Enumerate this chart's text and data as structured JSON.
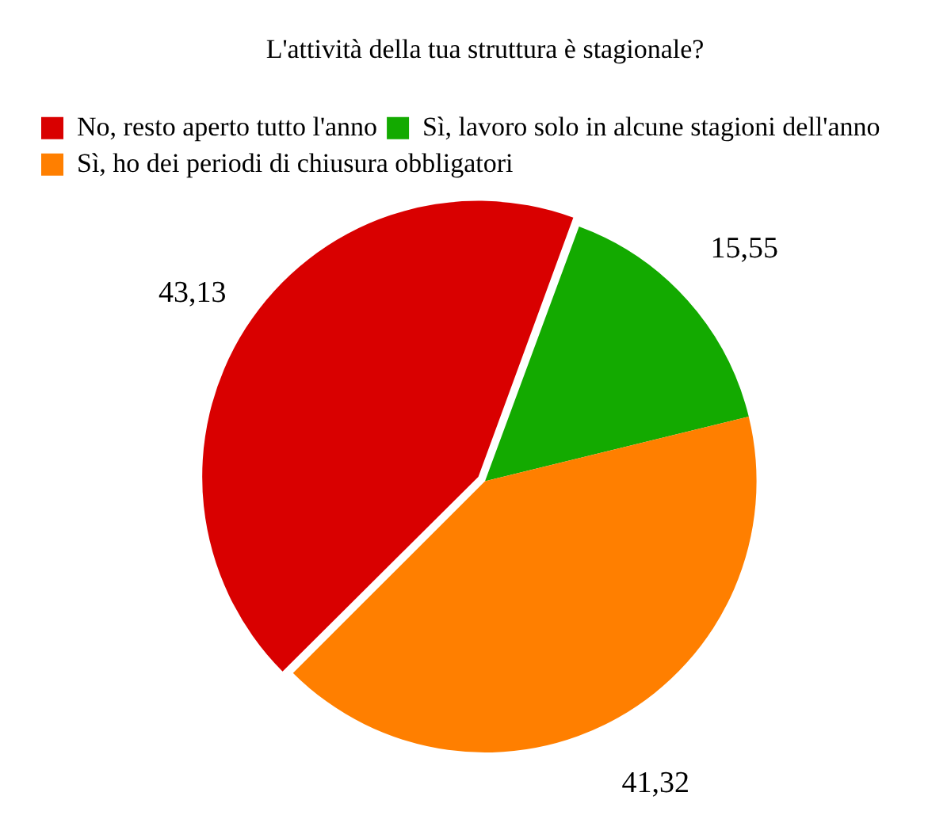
{
  "chart_data": {
    "type": "pie",
    "title": "L'attività della tua struttura è stagionale?",
    "categories": [
      "No, resto aperto tutto l'anno",
      "Sì, lavoro solo in alcune stagioni dell'anno",
      "Sì, ho dei periodi di chiusura obbligatori"
    ],
    "values": [
      43.13,
      15.55,
      41.32
    ],
    "colors": [
      "#d90000",
      "#13aa00",
      "#ff7f00"
    ],
    "value_labels": [
      "43,13",
      "15,55",
      "41,32"
    ],
    "legend": "top left"
  }
}
